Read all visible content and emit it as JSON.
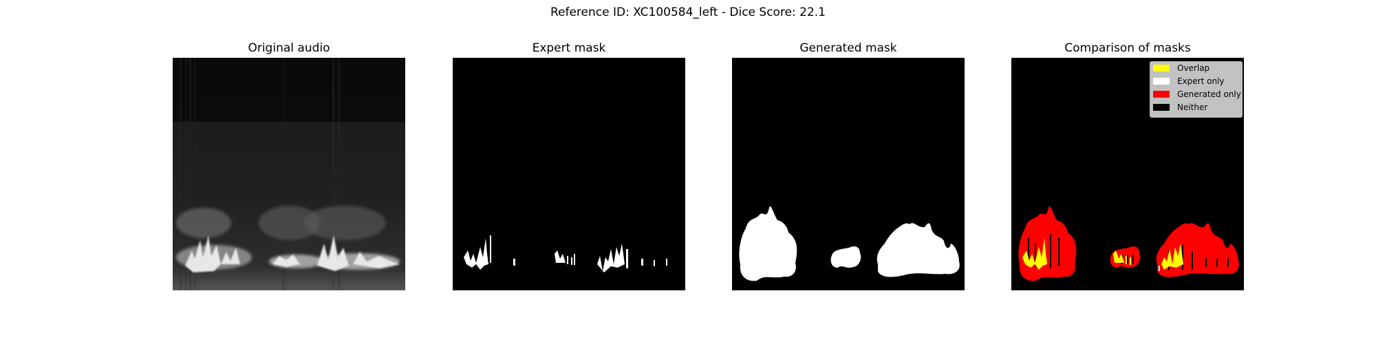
{
  "suptitle": "Reference ID: XC100584_left - Dice Score: 22.1",
  "panels": [
    {
      "title": "Original audio"
    },
    {
      "title": "Expert mask"
    },
    {
      "title": "Generated mask"
    },
    {
      "title": "Comparison of masks"
    }
  ],
  "legend": [
    {
      "label": "Overlap",
      "color": "#ffff00"
    },
    {
      "label": "Expert only",
      "color": "#ffffff"
    },
    {
      "label": "Generated only",
      "color": "#ff0000"
    },
    {
      "label": "Neither",
      "color": "#000000"
    }
  ],
  "chart_data": {
    "type": "heatmap",
    "title": "Reference ID: XC100584_left - Dice Score: 22.1",
    "subplots": [
      "Original audio",
      "Expert mask",
      "Generated mask",
      "Comparison of masks"
    ],
    "dice_score": 22.1,
    "reference_id": "XC100584_left",
    "axes_visible": false,
    "legend_placement": "top-right",
    "colors": {
      "overlap": "#ffff00",
      "expert_only": "#ffffff",
      "generated_only": "#ff0000",
      "neither": "#000000"
    }
  }
}
